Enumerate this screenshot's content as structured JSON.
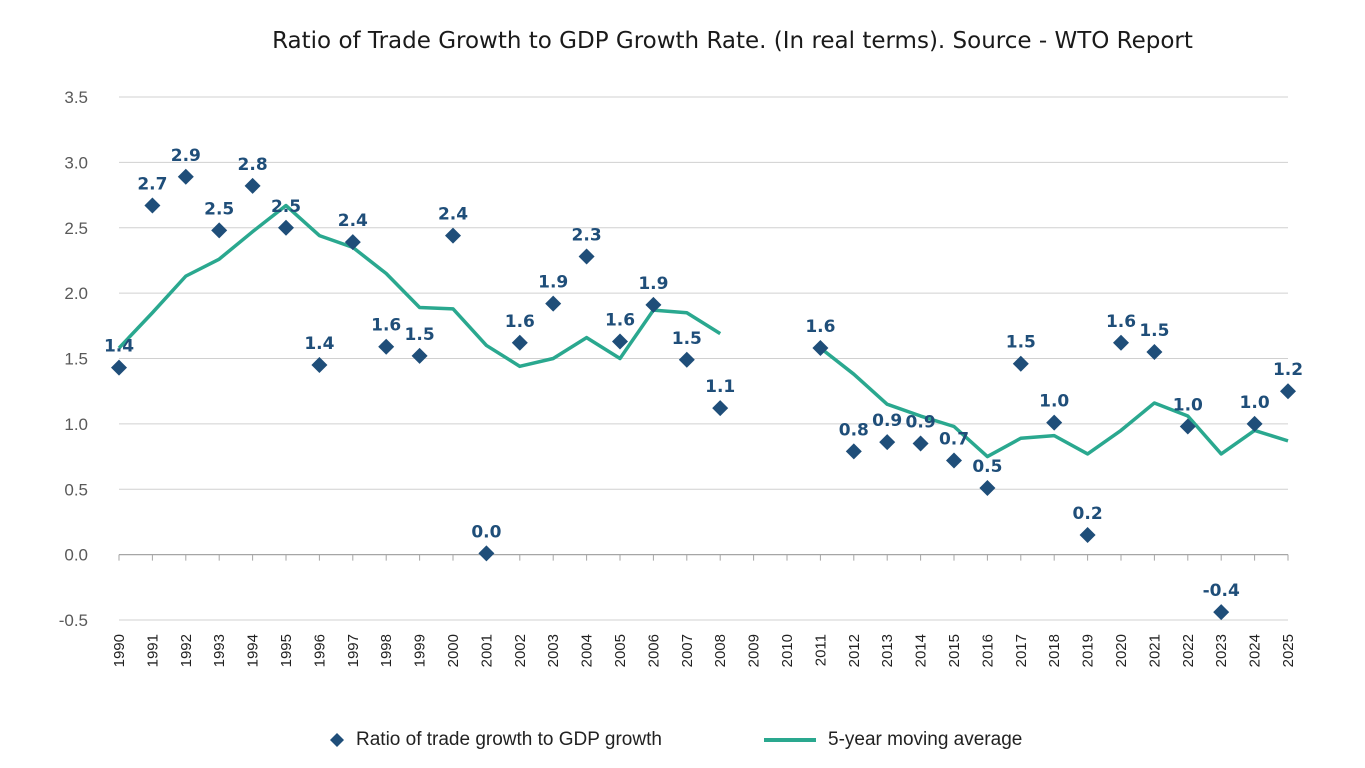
{
  "chart_data": {
    "type": "scatter",
    "title": "Ratio of Trade Growth to GDP Growth Rate. (In real terms). Source - WTO Report",
    "xlabel": "",
    "ylabel": "",
    "ylim": [
      -0.5,
      3.5
    ],
    "yticks": [
      -0.5,
      0.0,
      0.5,
      1.0,
      1.5,
      2.0,
      2.5,
      3.0,
      3.5
    ],
    "ytick_labels": [
      "-0.5",
      "0.0",
      "0.5",
      "1.0",
      "1.5",
      "2.0",
      "2.5",
      "3.0",
      "3.5"
    ],
    "categories": [
      "1990",
      "1991",
      "1992",
      "1993",
      "1994",
      "1995",
      "1996",
      "1997",
      "1998",
      "1999",
      "2000",
      "2001",
      "2002",
      "2003",
      "2004",
      "2005",
      "2006",
      "2007",
      "2008",
      "2009",
      "2010",
      "2011",
      "2012",
      "2013",
      "2014",
      "2015",
      "2016",
      "2017",
      "2018",
      "2019",
      "2020",
      "2021",
      "2022",
      "2023",
      "2024",
      "2025"
    ],
    "grid": "horizontal",
    "legend_position": "bottom",
    "series": [
      {
        "name": "Ratio of trade growth to GDP growth",
        "type": "scatter",
        "marker": "diamond",
        "color": "#1f4e79",
        "values": [
          1.43,
          2.67,
          2.89,
          2.48,
          2.82,
          2.5,
          1.45,
          2.39,
          1.59,
          1.52,
          2.44,
          0.01,
          1.62,
          1.92,
          2.28,
          1.63,
          1.91,
          1.49,
          1.12,
          null,
          null,
          1.58,
          0.79,
          0.86,
          0.85,
          0.72,
          0.51,
          1.46,
          1.01,
          0.15,
          1.62,
          1.55,
          0.98,
          -0.44,
          1.0,
          1.25
        ],
        "labels": [
          "1.4",
          "2.7",
          "2.9",
          "2.5",
          "2.8",
          "2.5",
          "1.4",
          "2.4",
          "1.6",
          "1.5",
          "2.4",
          "0.0",
          "1.6",
          "1.9",
          "2.3",
          "1.6",
          "1.9",
          "1.5",
          "1.1",
          null,
          null,
          "1.6",
          "0.8",
          "0.9",
          "0.9",
          "0.7",
          "0.5",
          "1.5",
          "1.0",
          "0.2",
          "1.6",
          "1.5",
          "1.0",
          "-0.4",
          "1.0",
          "1.2"
        ]
      },
      {
        "name": "5-year moving average",
        "type": "line",
        "color": "#2aa88f",
        "values": [
          1.58,
          1.85,
          2.13,
          2.26,
          2.47,
          2.67,
          2.44,
          2.35,
          2.15,
          1.89,
          1.88,
          1.6,
          1.44,
          1.5,
          1.66,
          1.5,
          1.87,
          1.85,
          1.69,
          null,
          null,
          1.58,
          1.38,
          1.15,
          1.06,
          0.98,
          0.75,
          0.89,
          0.91,
          0.77,
          0.95,
          1.16,
          1.06,
          0.77,
          0.95,
          0.87
        ]
      }
    ]
  }
}
